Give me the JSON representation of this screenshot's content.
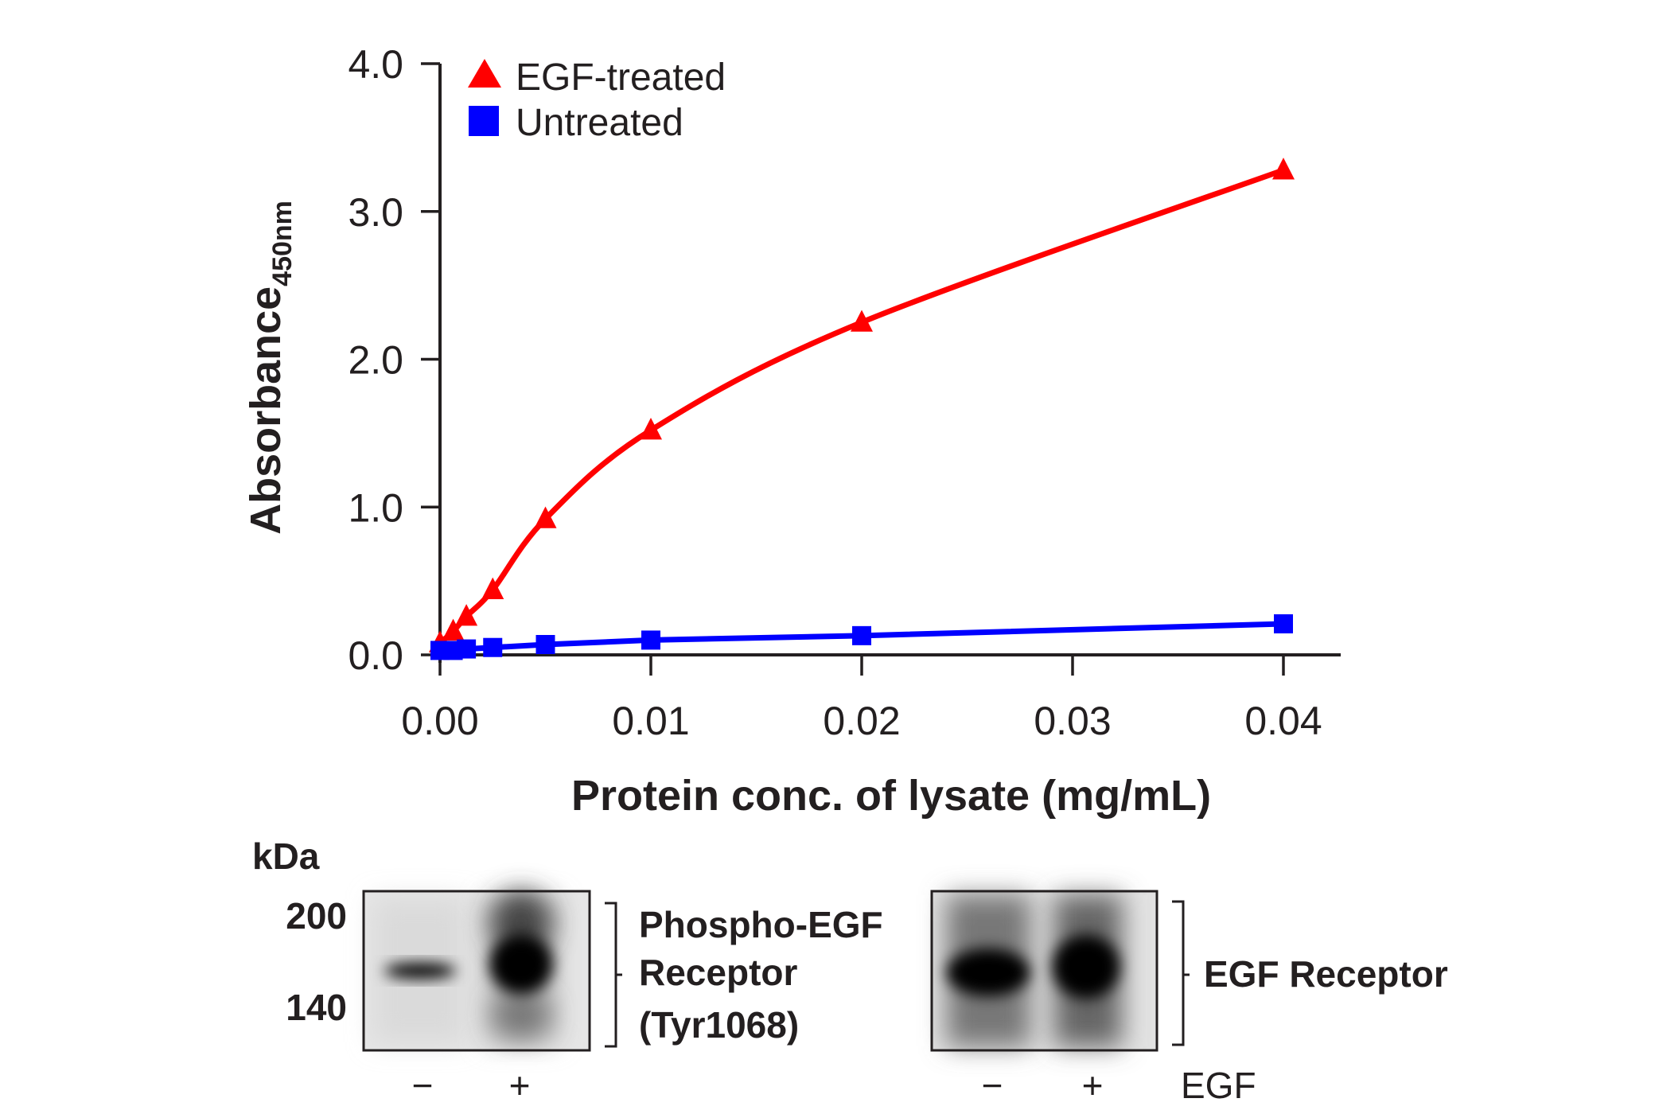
{
  "chart_data": {
    "type": "line",
    "title": "",
    "xlabel": "Protein conc. of lysate (mg/mL)",
    "ylabel": "Absorbance",
    "ylabel_subscript": "450nm",
    "xlim": [
      0,
      0.04
    ],
    "ylim": [
      0,
      4.0
    ],
    "x_ticks": [
      0.0,
      0.01,
      0.02,
      0.03,
      0.04
    ],
    "x_tick_labels": [
      "0.00",
      "0.01",
      "0.02",
      "0.03",
      "0.04"
    ],
    "y_ticks": [
      0,
      1,
      2,
      3,
      4
    ],
    "y_tick_labels": [
      "0.0",
      "1.0",
      "2.0",
      "3.0",
      "4.0"
    ],
    "grid": false,
    "legend_position": "top-left",
    "x": [
      0,
      0.000625,
      0.00125,
      0.0025,
      0.005,
      0.01,
      0.02,
      0.04
    ],
    "series": [
      {
        "name": "EGF-treated",
        "color": "#ff0000",
        "marker": "triangle",
        "values": [
          0.08,
          0.16,
          0.26,
          0.44,
          0.92,
          1.52,
          2.25,
          3.28
        ],
        "fit": "curve"
      },
      {
        "name": "Untreated",
        "color": "#0000ff",
        "marker": "square",
        "values": [
          0.03,
          0.03,
          0.04,
          0.05,
          0.07,
          0.1,
          0.13,
          0.21
        ],
        "fit": "line"
      }
    ]
  },
  "western_blot": {
    "units_label": "kDa",
    "mw_markers": [
      "200",
      "140"
    ],
    "panels": [
      {
        "label_lines": [
          "Phospho-EGF",
          "Receptor",
          "(Tyr1068)"
        ],
        "lanes": [
          "−",
          "+"
        ],
        "band_intensity": [
          0.35,
          1.0
        ]
      },
      {
        "label_lines": [
          "EGF Receptor"
        ],
        "lanes": [
          "−",
          "+"
        ],
        "band_intensity": [
          1.0,
          1.0
        ]
      }
    ],
    "treatment_label": "EGF"
  }
}
